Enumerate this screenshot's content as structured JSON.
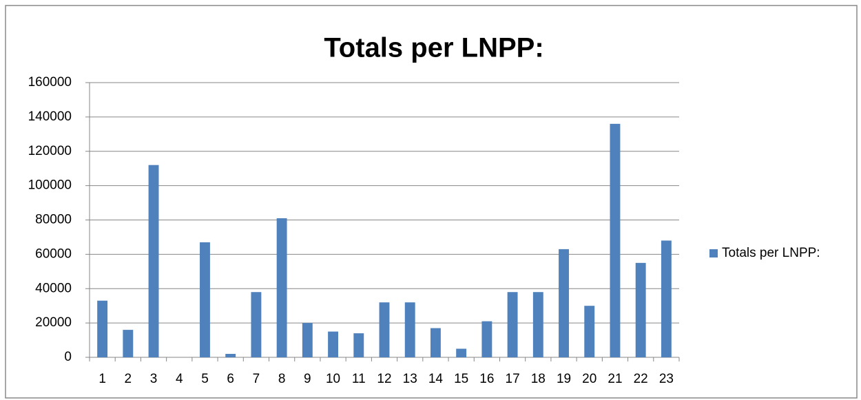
{
  "chart_data": {
    "type": "bar",
    "title": "Totals per LNPP:",
    "categories": [
      "1",
      "2",
      "3",
      "4",
      "5",
      "6",
      "7",
      "8",
      "9",
      "10",
      "11",
      "12",
      "13",
      "14",
      "15",
      "16",
      "17",
      "18",
      "19",
      "20",
      "21",
      "22",
      "23"
    ],
    "series": [
      {
        "name": "Totals per LNPP:",
        "color": "#4f81bd",
        "values": [
          33000,
          16000,
          112000,
          0,
          67000,
          2000,
          38000,
          81000,
          20000,
          15000,
          14000,
          32000,
          32000,
          17000,
          5000,
          21000,
          38000,
          38000,
          63000,
          30000,
          136000,
          55000,
          68000
        ]
      }
    ],
    "ylim": [
      0,
      160000
    ],
    "yticks": [
      0,
      20000,
      40000,
      60000,
      80000,
      100000,
      120000,
      140000,
      160000
    ],
    "grid": true,
    "legend": "right"
  }
}
